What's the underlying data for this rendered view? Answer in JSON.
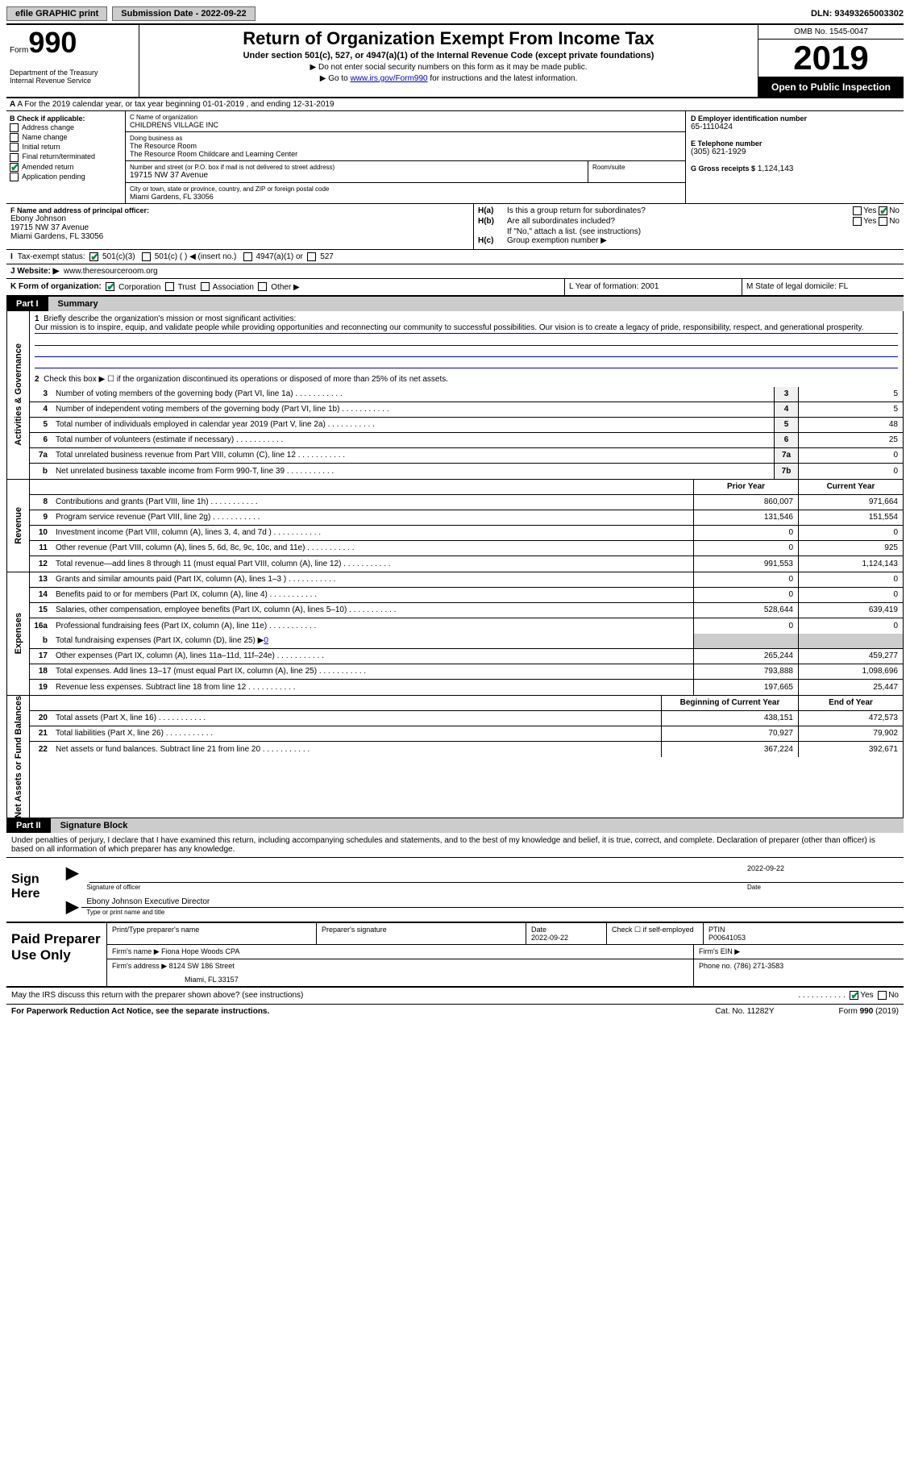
{
  "topbar": {
    "efile": "efile GRAPHIC print",
    "submission": "Submission Date - 2022-09-22",
    "dln": "DLN: 93493265003302"
  },
  "header": {
    "form_label": "Form",
    "form_num": "990",
    "dept": "Department of the Treasury\nInternal Revenue Service",
    "title": "Return of Organization Exempt From Income Tax",
    "subtitle": "Under section 501(c), 527, or 4947(a)(1) of the Internal Revenue Code (except private foundations)",
    "instr1": "▶ Do not enter social security numbers on this form as it may be made public.",
    "instr2_pre": "▶ Go to ",
    "instr2_link": "www.irs.gov/Form990",
    "instr2_post": " for instructions and the latest information.",
    "omb": "OMB No. 1545-0047",
    "year": "2019",
    "inspection": "Open to Public Inspection"
  },
  "row_a": "A For the 2019 calendar year, or tax year beginning 01-01-2019    , and ending 12-31-2019",
  "col_b": {
    "header": "B Check if applicable:",
    "items": [
      "Address change",
      "Name change",
      "Initial return",
      "Final return/terminated",
      "Amended return",
      "Application pending"
    ],
    "checked_idx": 4
  },
  "col_c": {
    "name_label": "C Name of organization",
    "name": "CHILDRENS VILLAGE INC",
    "dba_label": "Doing business as",
    "dba1": "The Resource Room",
    "dba2": "The Resource Room Childcare and Learning Center",
    "addr_label": "Number and street (or P.O. box if mail is not delivered to street address)",
    "room_label": "Room/suite",
    "addr": "19715 NW 37 Avenue",
    "city_label": "City or town, state or province, country, and ZIP or foreign postal code",
    "city": "Miami Gardens, FL  33056"
  },
  "col_d": {
    "ein_label": "D Employer identification number",
    "ein": "65-1110424",
    "tel_label": "E Telephone number",
    "tel": "(305) 621-1929",
    "gross_label": "G Gross receipts $",
    "gross": "1,124,143"
  },
  "col_f": {
    "label": "F  Name and address of principal officer:",
    "name": "Ebony Johnson",
    "addr1": "19715 NW 37 Avenue",
    "addr2": "Miami Gardens, FL  33056"
  },
  "col_h": {
    "ha_label": "H(a)",
    "ha_text": "Is this a group return for subordinates?",
    "hb_label": "H(b)",
    "hb_text": "Are all subordinates included?",
    "hb_note": "If \"No,\" attach a list. (see instructions)",
    "hc_label": "H(c)",
    "hc_text": "Group exemption number ▶"
  },
  "row_i": {
    "label": "I",
    "text": "Tax-exempt status:",
    "opts": [
      "501(c)(3)",
      "501(c) (  ) ◀ (insert no.)",
      "4947(a)(1) or",
      "527"
    ]
  },
  "row_j": {
    "label": "J",
    "text": "Website: ▶",
    "url": "www.theresourceroom.org"
  },
  "row_k": {
    "k": "K Form of organization:",
    "kopts": [
      "Corporation",
      "Trust",
      "Association",
      "Other ▶"
    ],
    "l": "L Year of formation: 2001",
    "m": "M State of legal domicile: FL"
  },
  "part1": {
    "tab": "Part I",
    "title": "Summary"
  },
  "mission": {
    "num": "1",
    "label": "Briefly describe the organization's mission or most significant activities:",
    "text": "Our mission is to inspire, equip, and validate people while providing opportunities and reconnecting our community to successful possibilities. Our vision is to create a legacy of pride, responsibility, respect, and generational prosperity."
  },
  "line2": {
    "num": "2",
    "text": "Check this box ▶ ☐  if the organization discontinued its operations or disposed of more than 25% of its net assets."
  },
  "gov_sidebar": "Activities & Governance",
  "rev_sidebar": "Revenue",
  "exp_sidebar": "Expenses",
  "net_sidebar": "Net Assets or Fund Balances",
  "lines_gov": [
    {
      "n": "3",
      "d": "Number of voting members of the governing body (Part VI, line 1a)",
      "b": "3",
      "v": "5"
    },
    {
      "n": "4",
      "d": "Number of independent voting members of the governing body (Part VI, line 1b)",
      "b": "4",
      "v": "5"
    },
    {
      "n": "5",
      "d": "Total number of individuals employed in calendar year 2019 (Part V, line 2a)",
      "b": "5",
      "v": "48"
    },
    {
      "n": "6",
      "d": "Total number of volunteers (estimate if necessary)",
      "b": "6",
      "v": "25"
    },
    {
      "n": "7a",
      "d": "Total unrelated business revenue from Part VIII, column (C), line 12",
      "b": "7a",
      "v": "0"
    },
    {
      "n": "b",
      "d": "Net unrelated business taxable income from Form 990-T, line 39",
      "b": "7b",
      "v": "0"
    }
  ],
  "col_headers": {
    "prior": "Prior Year",
    "current": "Current Year"
  },
  "lines_rev": [
    {
      "n": "8",
      "d": "Contributions and grants (Part VIII, line 1h)",
      "p": "860,007",
      "c": "971,664"
    },
    {
      "n": "9",
      "d": "Program service revenue (Part VIII, line 2g)",
      "p": "131,546",
      "c": "151,554"
    },
    {
      "n": "10",
      "d": "Investment income (Part VIII, column (A), lines 3, 4, and 7d )",
      "p": "0",
      "c": "0"
    },
    {
      "n": "11",
      "d": "Other revenue (Part VIII, column (A), lines 5, 6d, 8c, 9c, 10c, and 11e)",
      "p": "0",
      "c": "925"
    },
    {
      "n": "12",
      "d": "Total revenue—add lines 8 through 11 (must equal Part VIII, column (A), line 12)",
      "p": "991,553",
      "c": "1,124,143"
    }
  ],
  "lines_exp": [
    {
      "n": "13",
      "d": "Grants and similar amounts paid (Part IX, column (A), lines 1–3 )",
      "p": "0",
      "c": "0"
    },
    {
      "n": "14",
      "d": "Benefits paid to or for members (Part IX, column (A), line 4)",
      "p": "0",
      "c": "0"
    },
    {
      "n": "15",
      "d": "Salaries, other compensation, employee benefits (Part IX, column (A), lines 5–10)",
      "p": "528,644",
      "c": "639,419"
    },
    {
      "n": "16a",
      "d": "Professional fundraising fees (Part IX, column (A), line 11e)",
      "p": "0",
      "c": "0"
    }
  ],
  "line16b": {
    "n": "b",
    "d": "Total fundraising expenses (Part IX, column (D), line 25) ▶",
    "v": "0"
  },
  "lines_exp2": [
    {
      "n": "17",
      "d": "Other expenses (Part IX, column (A), lines 11a–11d, 11f–24e)",
      "p": "265,244",
      "c": "459,277"
    },
    {
      "n": "18",
      "d": "Total expenses. Add lines 13–17 (must equal Part IX, column (A), line 25)",
      "p": "793,888",
      "c": "1,098,696"
    },
    {
      "n": "19",
      "d": "Revenue less expenses. Subtract line 18 from line 12",
      "p": "197,665",
      "c": "25,447"
    }
  ],
  "col_headers2": {
    "begin": "Beginning of Current Year",
    "end": "End of Year"
  },
  "lines_net": [
    {
      "n": "20",
      "d": "Total assets (Part X, line 16)",
      "p": "438,151",
      "c": "472,573"
    },
    {
      "n": "21",
      "d": "Total liabilities (Part X, line 26)",
      "p": "70,927",
      "c": "79,902"
    },
    {
      "n": "22",
      "d": "Net assets or fund balances. Subtract line 21 from line 20",
      "p": "367,224",
      "c": "392,671"
    }
  ],
  "part2": {
    "tab": "Part II",
    "title": "Signature Block",
    "text": "Under penalties of perjury, I declare that I have examined this return, including accompanying schedules and statements, and to the best of my knowledge and belief, it is true, correct, and complete. Declaration of preparer (other than officer) is based on all information of which preparer has any knowledge."
  },
  "sign": {
    "label": "Sign Here",
    "sig_label": "Signature of officer",
    "date": "2022-09-22",
    "date_label": "Date",
    "name": "Ebony Johnson  Executive Director",
    "name_label": "Type or print name and title"
  },
  "prep": {
    "label": "Paid Preparer Use Only",
    "col1": "Print/Type preparer's name",
    "col2": "Preparer's signature",
    "col3_label": "Date",
    "col3": "2022-09-22",
    "col4": "Check ☐ if self-employed",
    "col5_label": "PTIN",
    "col5": "P00641053",
    "firm_label": "Firm's name    ▶",
    "firm": "Fiona Hope Woods CPA",
    "ein_label": "Firm's EIN ▶",
    "addr_label": "Firm's address ▶",
    "addr": "8124 SW 186 Street",
    "addr2": "Miami, FL  33157",
    "phone_label": "Phone no.",
    "phone": "(786) 271-3583"
  },
  "discuss": "May the IRS discuss this return with the preparer shown above? (see instructions)",
  "footer": {
    "left": "For Paperwork Reduction Act Notice, see the separate instructions.",
    "cat": "Cat. No. 11282Y",
    "right": "Form 990 (2019)"
  }
}
